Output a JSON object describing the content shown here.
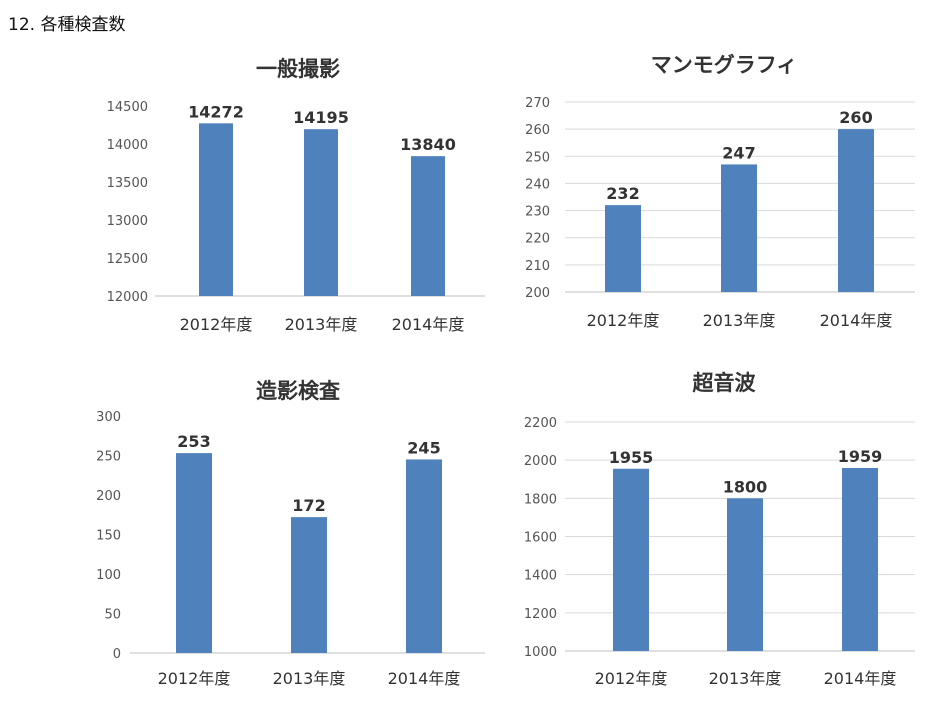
{
  "page": {
    "heading": "12.  各種検査数"
  },
  "colors": {
    "bar": "#4f81bd",
    "grid": "#d9d9d9"
  },
  "chart_data": [
    {
      "type": "bar",
      "title": "一般撮影",
      "categories": [
        "2012年度",
        "2013年度",
        "2014年度"
      ],
      "values": [
        14272,
        14195,
        13840
      ],
      "ylim": [
        12000,
        14500
      ],
      "yticks": [
        12000,
        12500,
        13000,
        13500,
        14000,
        14500
      ],
      "grid": false,
      "data_labels": true
    },
    {
      "type": "bar",
      "title": "マンモグラフィ",
      "categories": [
        "2012年度",
        "2013年度",
        "2014年度"
      ],
      "values": [
        232,
        247,
        260
      ],
      "ylim": [
        200,
        270
      ],
      "yticks": [
        200,
        210,
        220,
        230,
        240,
        250,
        260,
        270
      ],
      "grid": true,
      "data_labels": true
    },
    {
      "type": "bar",
      "title": "造影検査",
      "categories": [
        "2012年度",
        "2013年度",
        "2014年度"
      ],
      "values": [
        253,
        172,
        245
      ],
      "ylim": [
        0,
        300
      ],
      "yticks": [
        0,
        50,
        100,
        150,
        200,
        250,
        300
      ],
      "grid": false,
      "data_labels": true
    },
    {
      "type": "bar",
      "title": "超音波",
      "categories": [
        "2012年度",
        "2013年度",
        "2014年度"
      ],
      "values": [
        1955,
        1800,
        1959
      ],
      "ylim": [
        1000,
        2200
      ],
      "yticks": [
        1000,
        1200,
        1400,
        1600,
        1800,
        2000,
        2200
      ],
      "grid": true,
      "data_labels": true
    }
  ]
}
